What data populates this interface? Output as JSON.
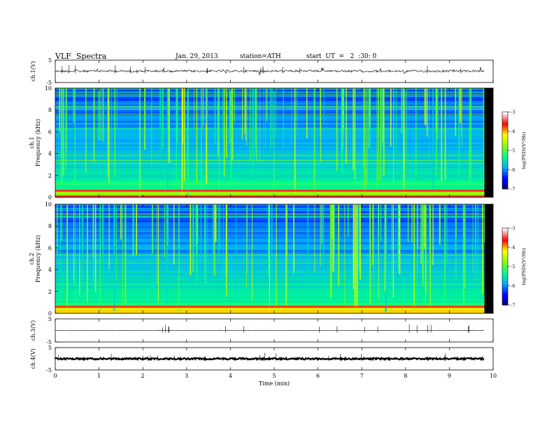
{
  "header": {
    "title": "VLF  Spectra",
    "date": "Jan. 29, 2013",
    "station": "station=ATH",
    "start": "start  UT  =   2  :30: 0"
  },
  "chart_data": {
    "type": "heatmap",
    "xlabel": "Time  (min)",
    "xlim": [
      0,
      10
    ],
    "x_ticks": [
      "0",
      "1",
      "2",
      "3",
      "4",
      "5",
      "6",
      "7",
      "8",
      "9",
      "10"
    ],
    "data_end_min": 9.8,
    "panels": [
      {
        "id": "ch1-wave",
        "kind": "waveform",
        "ylabel": "ch.1(V)",
        "yticks": [
          "5",
          "-5"
        ],
        "ylim": [
          -5,
          5
        ],
        "level": 0.1,
        "noise": "high"
      },
      {
        "id": "ch1-spec",
        "kind": "spectrogram",
        "ylabel": "ch.1\nFrequency  (kHz)",
        "yticks": [
          "10",
          "8",
          "6",
          "4",
          "2",
          "0"
        ],
        "ylim": [
          0,
          10
        ]
      },
      {
        "id": "ch2-spec",
        "kind": "spectrogram",
        "ylabel": "ch.2\nFrequency  (kHz)",
        "yticks": [
          "10",
          "8",
          "6",
          "4",
          "2",
          "0"
        ],
        "ylim": [
          0,
          10
        ]
      },
      {
        "id": "ch3-wave",
        "kind": "waveform",
        "ylabel": "ch.3(V)",
        "yticks": [
          "5",
          "-5"
        ],
        "ylim": [
          -5,
          5
        ],
        "level": 0.0,
        "noise": "low"
      },
      {
        "id": "ch4-wave",
        "kind": "waveform",
        "ylabel": "ch.4(V)",
        "yticks": [
          "5",
          "-5"
        ],
        "ylim": [
          -5,
          5
        ],
        "level": 0.0,
        "noise": "thick"
      }
    ],
    "colorbar": {
      "label": "log(PSD)(V²/Hz)",
      "ticks": [
        "-3",
        "-4",
        "-5",
        "-6",
        "-7"
      ],
      "range": [
        -7,
        -3
      ],
      "colors": [
        "#000066",
        "#0000ff",
        "#00aaff",
        "#00ff88",
        "#88ff00",
        "#ffff00",
        "#ff0000",
        "#ffffff"
      ]
    },
    "grid": false
  }
}
